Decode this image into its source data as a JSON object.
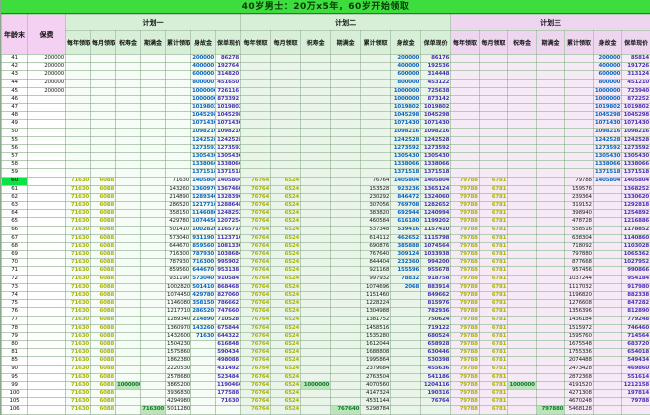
{
  "title": "40岁男士：20万x5年，60岁开始领取",
  "header": {
    "age": "年龄末",
    "premium": "保费",
    "plans": [
      "计划一",
      "计划二",
      "计划三"
    ],
    "columns": [
      "每年领取",
      "每月领取",
      "祝寿金",
      "期满金",
      "累计领取",
      "身故金",
      "保单现价"
    ]
  },
  "colors": {
    "title_bar": "#3ddd3d",
    "left_header": "#f4d0f2",
    "plan_green_header": "#d6efd6",
    "plan_pink_header": "#eed6f0",
    "annual_text": "#a9b408",
    "death_text": "#0b66c2",
    "cash_text": "#4a32b4",
    "benefit_highlight": "#b9e6b9",
    "age60_highlight": "#0ae345"
  },
  "rows": [
    {
      "age": "41",
      "premium": "200000",
      "p1": [
        "",
        "",
        "",
        "",
        "",
        "200000",
        "86278"
      ],
      "p2": [
        "",
        "",
        "",
        "",
        "",
        "200000",
        "86176"
      ],
      "p3": [
        "",
        "",
        "",
        "",
        "",
        "200000",
        "85814"
      ]
    },
    {
      "age": "42",
      "premium": "200000",
      "p1": [
        "",
        "",
        "",
        "",
        "",
        "400000",
        "192764"
      ],
      "p2": [
        "",
        "",
        "",
        "",
        "",
        "400000",
        "192536"
      ],
      "p3": [
        "",
        "",
        "",
        "",
        "",
        "400000",
        "191726"
      ]
    },
    {
      "age": "43",
      "premium": "200000",
      "p1": [
        "",
        "",
        "",
        "",
        "",
        "600000",
        "314820"
      ],
      "p2": [
        "",
        "",
        "",
        "",
        "",
        "600000",
        "314448"
      ],
      "p3": [
        "",
        "",
        "",
        "",
        "",
        "600000",
        "313124"
      ]
    },
    {
      "age": "44",
      "premium": "200000",
      "p1": [
        "",
        "",
        "",
        "",
        "",
        "800000",
        "451650"
      ],
      "p2": [
        "",
        "",
        "",
        "",
        "",
        "800000",
        "453122"
      ],
      "p3": [
        "",
        "",
        "",
        "",
        "",
        "800000",
        "451210"
      ]
    },
    {
      "age": "45",
      "premium": "200000",
      "p1": [
        "",
        "",
        "",
        "",
        "",
        "1000000",
        "726116"
      ],
      "p2": [
        "",
        "",
        "",
        "",
        "",
        "1000000",
        "725638"
      ],
      "p3": [
        "",
        "",
        "",
        "",
        "",
        "1000000",
        "723940"
      ]
    },
    {
      "age": "46",
      "premium": "",
      "p1": [
        "",
        "",
        "",
        "",
        "",
        "1000000",
        "873392"
      ],
      "p2": [
        "",
        "",
        "",
        "",
        "",
        "1000000",
        "873142"
      ],
      "p3": [
        "",
        "",
        "",
        "",
        "",
        "1000000",
        "872252"
      ]
    },
    {
      "age": "47",
      "premium": "",
      "p1": [
        "",
        "",
        "",
        "",
        "",
        "1019802",
        "1019802"
      ],
      "p2": [
        "",
        "",
        "",
        "",
        "",
        "1019802",
        "1019802"
      ],
      "p3": [
        "",
        "",
        "",
        "",
        "",
        "1019802",
        "1019802"
      ]
    },
    {
      "age": "48",
      "premium": "",
      "p1": [
        "",
        "",
        "",
        "",
        "",
        "1045298",
        "1045298"
      ],
      "p2": [
        "",
        "",
        "",
        "",
        "",
        "1045298",
        "1045298"
      ],
      "p3": [
        "",
        "",
        "",
        "",
        "",
        "1045298",
        "1045298"
      ]
    },
    {
      "age": "49",
      "premium": "",
      "p1": [
        "",
        "",
        "",
        "",
        "",
        "1071430",
        "1071430"
      ],
      "p2": [
        "",
        "",
        "",
        "",
        "",
        "1071430",
        "1071430"
      ],
      "p3": [
        "",
        "",
        "",
        "",
        "",
        "1071430",
        "1071430"
      ]
    },
    {
      "age": "50",
      "premium": "",
      "p1": [
        "",
        "",
        "",
        "",
        "",
        "1098216",
        "1098216"
      ],
      "p2": [
        "",
        "",
        "",
        "",
        "",
        "1098216",
        "1098216"
      ],
      "p3": [
        "",
        "",
        "",
        "",
        "",
        "1098216",
        "1098216"
      ]
    },
    {
      "age": "55",
      "premium": "",
      "p1": [
        "",
        "",
        "",
        "",
        "",
        "1242528",
        "1242528"
      ],
      "p2": [
        "",
        "",
        "",
        "",
        "",
        "1242528",
        "1242528"
      ],
      "p3": [
        "",
        "",
        "",
        "",
        "",
        "1242528",
        "1242528"
      ]
    },
    {
      "age": "56",
      "premium": "",
      "p1": [
        "",
        "",
        "",
        "",
        "",
        "1273592",
        "1273592"
      ],
      "p2": [
        "",
        "",
        "",
        "",
        "",
        "1273592",
        "1273592"
      ],
      "p3": [
        "",
        "",
        "",
        "",
        "",
        "1273592",
        "1273592"
      ]
    },
    {
      "age": "57",
      "premium": "",
      "p1": [
        "",
        "",
        "",
        "",
        "",
        "1305430",
        "1305430"
      ],
      "p2": [
        "",
        "",
        "",
        "",
        "",
        "1305430",
        "1305430"
      ],
      "p3": [
        "",
        "",
        "",
        "",
        "",
        "1305430",
        "1305430"
      ]
    },
    {
      "age": "58",
      "premium": "",
      "p1": [
        "",
        "",
        "",
        "",
        "",
        "1338066",
        "1338066"
      ],
      "p2": [
        "",
        "",
        "",
        "",
        "",
        "1338066",
        "1338066"
      ],
      "p3": [
        "",
        "",
        "",
        "",
        "",
        "1338066",
        "1338066"
      ]
    },
    {
      "age": "59",
      "premium": "",
      "p1": [
        "",
        "",
        "",
        "",
        "",
        "1371518",
        "1371518"
      ],
      "p2": [
        "",
        "",
        "",
        "",
        "",
        "1371518",
        "1371518"
      ],
      "p3": [
        "",
        "",
        "",
        "",
        "",
        "1371518",
        "1371518"
      ]
    },
    {
      "age": "60",
      "premium": "",
      "p1": [
        "71630",
        "6088",
        "",
        "",
        "71630",
        "1405804",
        "1405804"
      ],
      "p2": [
        "76764",
        "6524",
        "",
        "",
        "76764",
        "1405804",
        "1405804"
      ],
      "p3": [
        "79788",
        "6781",
        "",
        "",
        "79788",
        "1405804",
        "1405804"
      ]
    },
    {
      "age": "61",
      "premium": "",
      "p1": [
        "71630",
        "6088",
        "",
        "",
        "143260",
        "1360970",
        "1367460"
      ],
      "p2": [
        "76764",
        "6524",
        "",
        "",
        "153528",
        "923236",
        "1365124"
      ],
      "p3": [
        "79788",
        "6781",
        "",
        "",
        "159576",
        "",
        "1368252"
      ]
    },
    {
      "age": "62",
      "premium": "",
      "p1": [
        "71630",
        "6088",
        "",
        "",
        "214890",
        "1289340",
        "1328396"
      ],
      "p2": [
        "76764",
        "6524",
        "",
        "",
        "230292",
        "846472",
        "1324060"
      ],
      "p3": [
        "79788",
        "6781",
        "",
        "",
        "239364",
        "",
        "1330620"
      ]
    },
    {
      "age": "63",
      "premium": "",
      "p1": [
        "71630",
        "6088",
        "",
        "",
        "286520",
        "1217710",
        "1288648"
      ],
      "p2": [
        "76764",
        "6524",
        "",
        "",
        "307056",
        "769708",
        "1282652"
      ],
      "p3": [
        "79788",
        "6781",
        "",
        "",
        "319152",
        "",
        "1292818"
      ]
    },
    {
      "age": "64",
      "premium": "",
      "p1": [
        "71630",
        "6088",
        "",
        "",
        "358150",
        "1146080",
        "1248252"
      ],
      "p2": [
        "76764",
        "6524",
        "",
        "",
        "383820",
        "692944",
        "1240994"
      ],
      "p3": [
        "79788",
        "6781",
        "",
        "",
        "398940",
        "",
        "1254892"
      ]
    },
    {
      "age": "65",
      "premium": "",
      "p1": [
        "71630",
        "6088",
        "",
        "",
        "429780",
        "1074450",
        "1207254"
      ],
      "p2": [
        "76764",
        "6524",
        "",
        "",
        "460584",
        "616180",
        "1199202"
      ],
      "p3": [
        "79788",
        "6781",
        "",
        "",
        "478728",
        "",
        "1216886"
      ]
    },
    {
      "age": "66",
      "premium": "",
      "p1": [
        "71630",
        "6088",
        "",
        "",
        "501410",
        "1002820",
        "1165714"
      ],
      "p2": [
        "76764",
        "6524",
        "",
        "",
        "537348",
        "539416",
        "1157410"
      ],
      "p3": [
        "79788",
        "6781",
        "",
        "",
        "558516",
        "",
        "1178852"
      ]
    },
    {
      "age": "67",
      "premium": "",
      "p1": [
        "71630",
        "6088",
        "",
        "",
        "573040",
        "931190",
        "1123710"
      ],
      "p2": [
        "76764",
        "6524",
        "",
        "",
        "614112",
        "462652",
        "1115798"
      ],
      "p3": [
        "79788",
        "6781",
        "",
        "",
        "638304",
        "",
        "1140860"
      ]
    },
    {
      "age": "68",
      "premium": "",
      "p1": [
        "71630",
        "6088",
        "",
        "",
        "644670",
        "859560",
        "1081330"
      ],
      "p2": [
        "76764",
        "6524",
        "",
        "",
        "690876",
        "385888",
        "1074564"
      ],
      "p3": [
        "79788",
        "6781",
        "",
        "",
        "718092",
        "",
        "1103028"
      ]
    },
    {
      "age": "69",
      "premium": "",
      "p1": [
        "71630",
        "6088",
        "",
        "",
        "716300",
        "787930",
        "1038684"
      ],
      "p2": [
        "76764",
        "6524",
        "",
        "",
        "767640",
        "309124",
        "1033938"
      ],
      "p3": [
        "79788",
        "6781",
        "",
        "",
        "797880",
        "",
        "1065362"
      ]
    },
    {
      "age": "70",
      "premium": "",
      "p1": [
        "71630",
        "6088",
        "",
        "",
        "787930",
        "716300",
        "995902"
      ],
      "p2": [
        "76764",
        "6524",
        "",
        "",
        "844404",
        "232360",
        "994200"
      ],
      "p3": [
        "79788",
        "6781",
        "",
        "",
        "877668",
        "",
        "1027952"
      ]
    },
    {
      "age": "71",
      "premium": "",
      "p1": [
        "71630",
        "6088",
        "",
        "",
        "859560",
        "644670",
        "953138"
      ],
      "p2": [
        "76764",
        "6524",
        "",
        "",
        "921168",
        "155596",
        "955678"
      ],
      "p3": [
        "79788",
        "6781",
        "",
        "",
        "957456",
        "",
        "990866"
      ]
    },
    {
      "age": "72",
      "premium": "",
      "p1": [
        "71630",
        "6088",
        "",
        "",
        "931190",
        "573040",
        "910584"
      ],
      "p2": [
        "76764",
        "6524",
        "",
        "",
        "997932",
        "78832",
        "918758"
      ],
      "p3": [
        "79788",
        "6781",
        "",
        "",
        "1037244",
        "",
        "954184"
      ]
    },
    {
      "age": "73",
      "premium": "",
      "p1": [
        "71630",
        "6088",
        "",
        "",
        "1002820",
        "501410",
        "868468"
      ],
      "p2": [
        "76764",
        "6524",
        "",
        "",
        "1074696",
        "2068",
        "883914"
      ],
      "p3": [
        "79788",
        "6781",
        "",
        "",
        "1117032",
        "",
        "917980"
      ]
    },
    {
      "age": "74",
      "premium": "",
      "p1": [
        "71630",
        "6088",
        "",
        "",
        "1074450",
        "429780",
        "827060"
      ],
      "p2": [
        "76764",
        "6524",
        "",
        "",
        "1151460",
        "",
        "849662"
      ],
      "p3": [
        "79788",
        "6781",
        "",
        "",
        "1196820",
        "",
        "882338"
      ]
    },
    {
      "age": "75",
      "premium": "",
      "p1": [
        "71630",
        "6088",
        "",
        "",
        "1146080",
        "358150",
        "786662"
      ],
      "p2": [
        "76764",
        "6524",
        "",
        "",
        "1228224",
        "",
        "815976"
      ],
      "p3": [
        "79788",
        "6781",
        "",
        "",
        "1276608",
        "",
        "847282"
      ]
    },
    {
      "age": "76",
      "premium": "",
      "p1": [
        "71630",
        "6088",
        "",
        "",
        "1217710",
        "286520",
        "747660"
      ],
      "p2": [
        "76764",
        "6524",
        "",
        "",
        "1304988",
        "",
        "782936"
      ],
      "p3": [
        "79788",
        "6781",
        "",
        "",
        "1356396",
        "",
        "812890"
      ]
    },
    {
      "age": "77",
      "premium": "",
      "p1": [
        "71630",
        "6088",
        "",
        "",
        "1289340",
        "214890",
        "710528"
      ],
      "p2": [
        "76764",
        "6524",
        "",
        "",
        "1381752",
        "",
        "750624"
      ],
      "p3": [
        "79788",
        "6781",
        "",
        "",
        "1436184",
        "",
        "779248"
      ]
    },
    {
      "age": "78",
      "premium": "",
      "p1": [
        "71630",
        "6088",
        "",
        "",
        "1360970",
        "143260",
        "675844"
      ],
      "p2": [
        "76764",
        "6524",
        "",
        "",
        "1458516",
        "",
        "719122"
      ],
      "p3": [
        "79788",
        "6781",
        "",
        "",
        "1515972",
        "",
        "746460"
      ]
    },
    {
      "age": "79",
      "premium": "",
      "p1": [
        "71630",
        "6088",
        "",
        "",
        "1432600",
        "71630",
        "644322"
      ],
      "p2": [
        "76764",
        "6524",
        "",
        "",
        "1535280",
        "",
        "680524"
      ],
      "p3": [
        "79788",
        "6781",
        "",
        "",
        "1595760",
        "",
        "714564"
      ]
    },
    {
      "age": "80",
      "premium": "",
      "p1": [
        "71630",
        "6088",
        "",
        "",
        "1504230",
        "",
        "616848"
      ],
      "p2": [
        "76764",
        "6524",
        "",
        "",
        "1612044",
        "",
        "658928"
      ],
      "p3": [
        "79788",
        "6781",
        "",
        "",
        "1675548",
        "",
        "683720"
      ]
    },
    {
      "age": "81",
      "premium": "",
      "p1": [
        "71630",
        "6088",
        "",
        "",
        "1575860",
        "",
        "590434"
      ],
      "p2": [
        "76764",
        "6524",
        "",
        "",
        "1688808",
        "",
        "630446"
      ],
      "p3": [
        "79788",
        "6781",
        "",
        "",
        "1755336",
        "",
        "654018"
      ]
    },
    {
      "age": "85",
      "premium": "",
      "p1": [
        "71630",
        "6088",
        "",
        "",
        "1862380",
        "",
        "498088"
      ],
      "p2": [
        "76764",
        "6524",
        "",
        "",
        "1995864",
        "",
        "530398"
      ],
      "p3": [
        "79788",
        "6781",
        "",
        "",
        "2074488",
        "",
        "549434"
      ]
    },
    {
      "age": "90",
      "premium": "",
      "p1": [
        "71630",
        "6088",
        "",
        "",
        "2220530",
        "",
        "431492"
      ],
      "p2": [
        "76764",
        "6524",
        "",
        "",
        "2379684",
        "",
        "455636"
      ],
      "p3": [
        "79788",
        "6781",
        "",
        "",
        "2473428",
        "",
        "469860"
      ]
    },
    {
      "age": "95",
      "premium": "",
      "p1": [
        "71630",
        "6088",
        "",
        "",
        "2578680",
        "",
        "523484"
      ],
      "p2": [
        "76764",
        "6524",
        "",
        "",
        "2763504",
        "",
        "541186"
      ],
      "p3": [
        "79788",
        "6781",
        "",
        "",
        "2872368",
        "",
        "551614"
      ]
    },
    {
      "age": "99",
      "premium": "",
      "p1": [
        "71630",
        "6088",
        "1000000",
        "",
        "3865200",
        "",
        "1190466"
      ],
      "p2": [
        "76764",
        "6524",
        "1000000",
        "",
        "4070560",
        "",
        "1204116"
      ],
      "p3": [
        "79788",
        "6781",
        "1000000",
        "",
        "4191520",
        "",
        "1212158"
      ]
    },
    {
      "age": "100",
      "premium": "",
      "p1": [
        "71630",
        "6088",
        "",
        "",
        "3936830",
        "",
        "177588"
      ],
      "p2": [
        "76764",
        "6524",
        "",
        "",
        "4147324",
        "",
        "190316"
      ],
      "p3": [
        "79788",
        "6781",
        "",
        "",
        "4271308",
        "",
        "197814"
      ]
    },
    {
      "age": "105",
      "premium": "",
      "p1": [
        "71630",
        "6088",
        "",
        "",
        "4294980",
        "",
        "71630"
      ],
      "p2": [
        "76764",
        "6524",
        "",
        "",
        "4531144",
        "",
        "76764"
      ],
      "p3": [
        "79788",
        "6781",
        "",
        "",
        "4670248",
        "",
        "79788"
      ]
    },
    {
      "age": "106",
      "premium": "",
      "p1": [
        "71630",
        "6088",
        "",
        "716300",
        "5011280",
        "",
        ""
      ],
      "p2": [
        "76764",
        "6524",
        "",
        "767640",
        "5298784",
        "",
        ""
      ],
      "p3": [
        "79788",
        "6781",
        "",
        "797880",
        "5468128",
        "",
        ""
      ]
    }
  ]
}
